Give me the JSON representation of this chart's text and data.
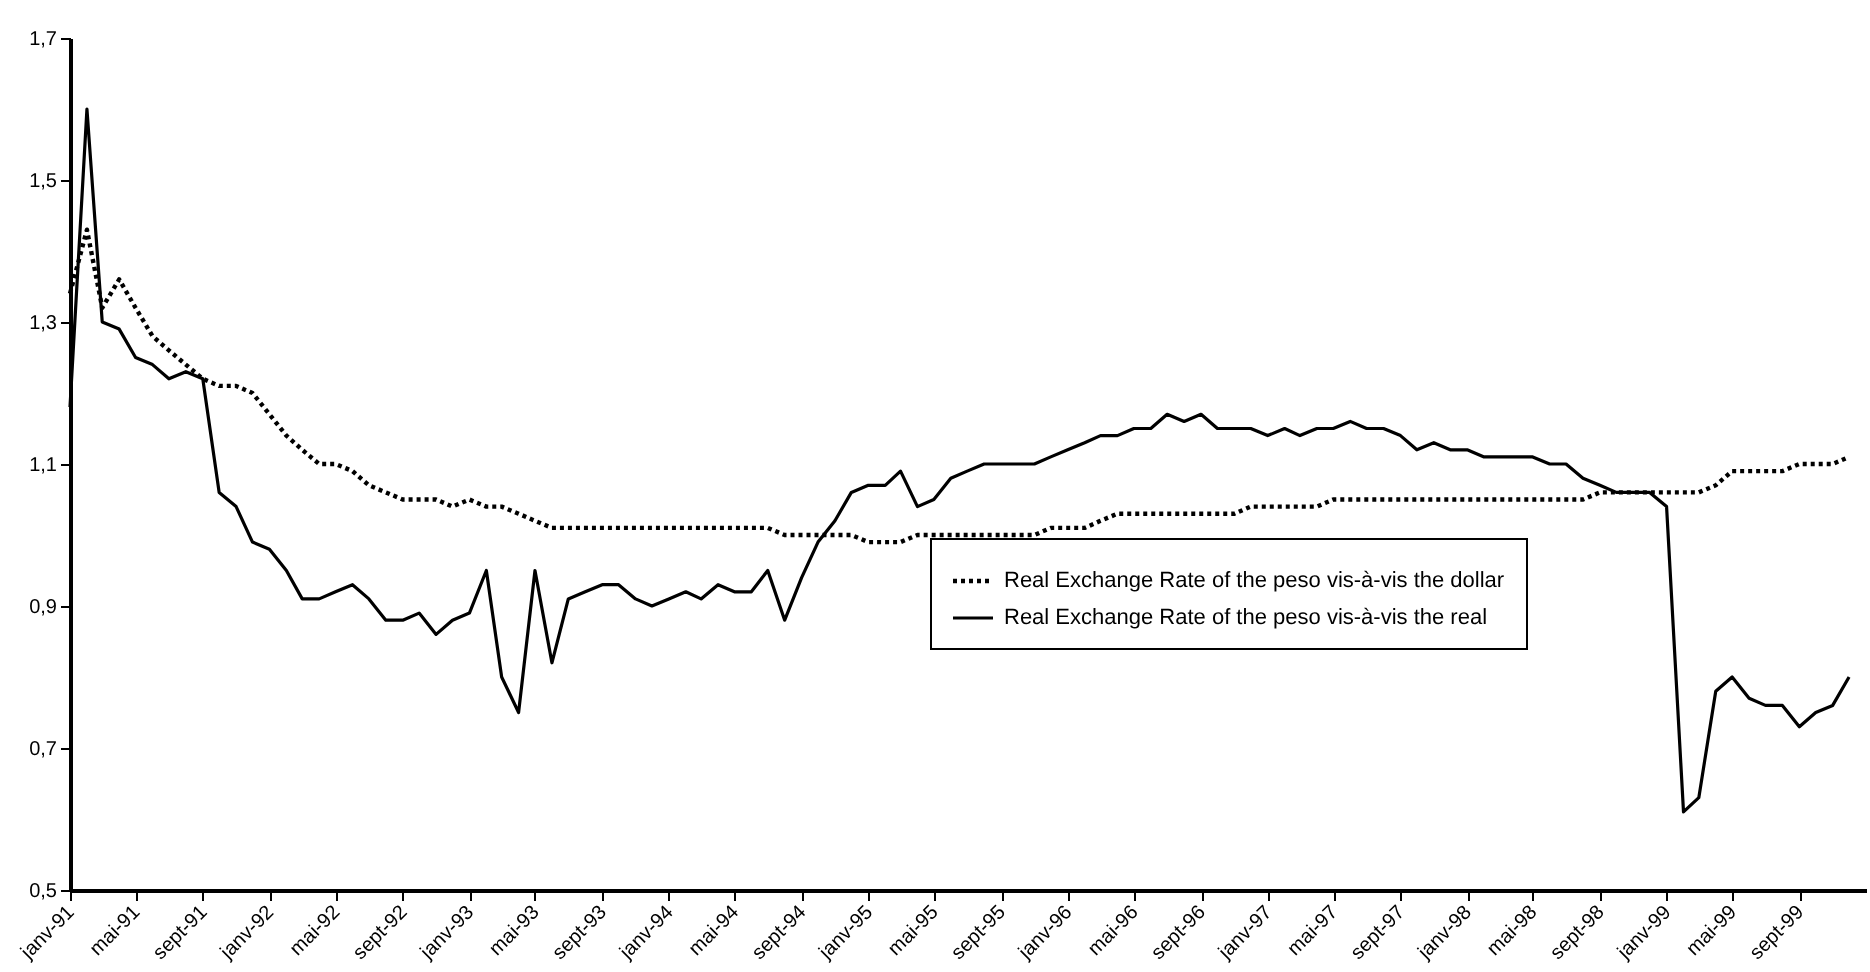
{
  "chart_data": {
    "type": "line",
    "x": [
      "1991-01",
      "1991-02",
      "1991-03",
      "1991-04",
      "1991-05",
      "1991-06",
      "1991-07",
      "1991-08",
      "1991-09",
      "1991-10",
      "1991-11",
      "1991-12",
      "1992-01",
      "1992-02",
      "1992-03",
      "1992-04",
      "1992-05",
      "1992-06",
      "1992-07",
      "1992-08",
      "1992-09",
      "1992-10",
      "1992-11",
      "1992-12",
      "1993-01",
      "1993-02",
      "1993-03",
      "1993-04",
      "1993-05",
      "1993-06",
      "1993-07",
      "1993-08",
      "1993-09",
      "1993-10",
      "1993-11",
      "1993-12",
      "1994-01",
      "1994-02",
      "1994-03",
      "1994-04",
      "1994-05",
      "1994-06",
      "1994-07",
      "1994-08",
      "1994-09",
      "1994-10",
      "1994-11",
      "1994-12",
      "1995-01",
      "1995-02",
      "1995-03",
      "1995-04",
      "1995-05",
      "1995-06",
      "1995-07",
      "1995-08",
      "1995-09",
      "1995-10",
      "1995-11",
      "1995-12",
      "1996-01",
      "1996-02",
      "1996-03",
      "1996-04",
      "1996-05",
      "1996-06",
      "1996-07",
      "1996-08",
      "1996-09",
      "1996-10",
      "1996-11",
      "1996-12",
      "1997-01",
      "1997-02",
      "1997-03",
      "1997-04",
      "1997-05",
      "1997-06",
      "1997-07",
      "1997-08",
      "1997-09",
      "1997-10",
      "1997-11",
      "1997-12",
      "1998-01",
      "1998-02",
      "1998-03",
      "1998-04",
      "1998-05",
      "1998-06",
      "1998-07",
      "1998-08",
      "1998-09",
      "1998-10",
      "1998-11",
      "1998-12",
      "1999-01",
      "1999-02",
      "1999-03",
      "1999-04",
      "1999-05",
      "1999-06",
      "1999-07",
      "1999-08",
      "1999-09",
      "1999-10",
      "1999-11",
      "1999-12"
    ],
    "series": [
      {
        "name": "Real Exchange Rate of the peso vis-à-vis the dollar",
        "color": "#000000",
        "line_style": "dotted",
        "values": [
          1.34,
          1.43,
          1.32,
          1.36,
          1.32,
          1.28,
          1.26,
          1.24,
          1.22,
          1.21,
          1.21,
          1.2,
          1.17,
          1.14,
          1.12,
          1.1,
          1.1,
          1.09,
          1.07,
          1.06,
          1.05,
          1.05,
          1.05,
          1.04,
          1.05,
          1.04,
          1.04,
          1.03,
          1.02,
          1.01,
          1.01,
          1.01,
          1.01,
          1.01,
          1.01,
          1.01,
          1.01,
          1.01,
          1.01,
          1.01,
          1.01,
          1.01,
          1.01,
          1.0,
          1.0,
          1.0,
          1.0,
          1.0,
          0.99,
          0.99,
          0.99,
          1.0,
          1.0,
          1.0,
          1.0,
          1.0,
          1.0,
          1.0,
          1.0,
          1.01,
          1.01,
          1.01,
          1.02,
          1.03,
          1.03,
          1.03,
          1.03,
          1.03,
          1.03,
          1.03,
          1.03,
          1.04,
          1.04,
          1.04,
          1.04,
          1.04,
          1.05,
          1.05,
          1.05,
          1.05,
          1.05,
          1.05,
          1.05,
          1.05,
          1.05,
          1.05,
          1.05,
          1.05,
          1.05,
          1.05,
          1.05,
          1.05,
          1.06,
          1.06,
          1.06,
          1.06,
          1.06,
          1.06,
          1.06,
          1.07,
          1.09,
          1.09,
          1.09,
          1.09,
          1.1,
          1.1,
          1.1,
          1.11
        ]
      },
      {
        "name": "Real Exchange Rate of the peso vis-à-vis the real",
        "color": "#000000",
        "line_style": "solid",
        "values": [
          1.18,
          1.6,
          1.3,
          1.29,
          1.25,
          1.24,
          1.22,
          1.23,
          1.22,
          1.06,
          1.04,
          0.99,
          0.98,
          0.95,
          0.91,
          0.91,
          0.92,
          0.93,
          0.91,
          0.88,
          0.88,
          0.89,
          0.86,
          0.88,
          0.89,
          0.95,
          0.8,
          0.75,
          0.95,
          0.82,
          0.91,
          0.92,
          0.93,
          0.93,
          0.91,
          0.9,
          0.91,
          0.92,
          0.91,
          0.93,
          0.92,
          0.92,
          0.95,
          0.88,
          0.94,
          0.99,
          1.02,
          1.06,
          1.07,
          1.07,
          1.09,
          1.04,
          1.05,
          1.08,
          1.09,
          1.1,
          1.1,
          1.1,
          1.1,
          1.11,
          1.12,
          1.13,
          1.14,
          1.14,
          1.15,
          1.15,
          1.17,
          1.16,
          1.17,
          1.15,
          1.15,
          1.15,
          1.14,
          1.15,
          1.14,
          1.15,
          1.15,
          1.16,
          1.15,
          1.15,
          1.14,
          1.12,
          1.13,
          1.12,
          1.12,
          1.11,
          1.11,
          1.11,
          1.11,
          1.1,
          1.1,
          1.08,
          1.07,
          1.06,
          1.06,
          1.06,
          1.04,
          0.61,
          0.63,
          0.78,
          0.8,
          0.77,
          0.76,
          0.76,
          0.73,
          0.75,
          0.76,
          0.8
        ]
      }
    ],
    "xlim": [
      "1991-01",
      "2000-01"
    ],
    "xticks": [
      {
        "value": "1991-01",
        "label": "janv-91"
      },
      {
        "value": "1991-05",
        "label": "mai-91"
      },
      {
        "value": "1991-09",
        "label": "sept-91"
      },
      {
        "value": "1992-01",
        "label": "janv-92"
      },
      {
        "value": "1992-05",
        "label": "mai-92"
      },
      {
        "value": "1992-09",
        "label": "sept-92"
      },
      {
        "value": "1993-01",
        "label": "janv-93"
      },
      {
        "value": "1993-05",
        "label": "mai-93"
      },
      {
        "value": "1993-09",
        "label": "sept-93"
      },
      {
        "value": "1994-01",
        "label": "janv-94"
      },
      {
        "value": "1994-05",
        "label": "mai-94"
      },
      {
        "value": "1994-09",
        "label": "sept-94"
      },
      {
        "value": "1995-01",
        "label": "janv-95"
      },
      {
        "value": "1995-05",
        "label": "mai-95"
      },
      {
        "value": "1995-09",
        "label": "sept-95"
      },
      {
        "value": "1996-01",
        "label": "janv-96"
      },
      {
        "value": "1996-05",
        "label": "mai-96"
      },
      {
        "value": "1996-09",
        "label": "sept-96"
      },
      {
        "value": "1997-01",
        "label": "janv-97"
      },
      {
        "value": "1997-05",
        "label": "mai-97"
      },
      {
        "value": "1997-09",
        "label": "sept-97"
      },
      {
        "value": "1998-01",
        "label": "janv-98"
      },
      {
        "value": "1998-05",
        "label": "mai-98"
      },
      {
        "value": "1998-09",
        "label": "sept-98"
      },
      {
        "value": "1999-01",
        "label": "janv-99"
      },
      {
        "value": "1999-05",
        "label": "mai-99"
      },
      {
        "value": "1999-09",
        "label": "sept-99"
      }
    ],
    "ylim": [
      0.5,
      1.7
    ],
    "yticks": [
      {
        "value": 0.5,
        "label": "0,5"
      },
      {
        "value": 0.7,
        "label": "0,7"
      },
      {
        "value": 0.9,
        "label": "0,9"
      },
      {
        "value": 1.1,
        "label": "1,1"
      },
      {
        "value": 1.3,
        "label": "1,3"
      },
      {
        "value": 1.5,
        "label": "1,5"
      },
      {
        "value": 1.7,
        "label": "1,7"
      }
    ],
    "grid": false,
    "legend": "bottom right",
    "marker": "none"
  }
}
